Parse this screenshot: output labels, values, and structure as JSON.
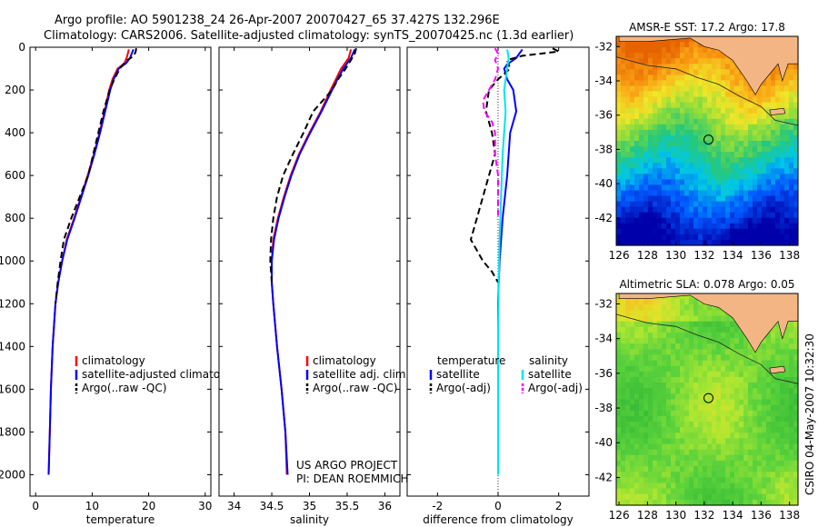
{
  "header": {
    "title_line1": "Argo profile: AO 5901238_24 26-Apr-2007 20070427_65 37.427S 132.296E",
    "title_line2": "Climatology: CARS2006. Satellite-adjusted climatology: synTS_20070425.nc (1.3d earlier)"
  },
  "colors": {
    "climatology": "#ff0000",
    "satellite": "#0000ff",
    "argo": "#000000",
    "diff_temp_sat": "#0000ff",
    "diff_temp_argo": "#000000",
    "diff_sal_sat": "#00e5ee",
    "diff_sal_argo": "#ff00ff",
    "land": "#f4b585"
  },
  "chart_data": [
    {
      "type": "line",
      "id": "temperature",
      "xlabel": "temperature",
      "xlim": [
        -1,
        31
      ],
      "ylim": [
        2100,
        0
      ],
      "xticks": [
        0,
        10,
        20,
        30
      ],
      "yticks": [
        0,
        200,
        400,
        600,
        800,
        1000,
        1200,
        1400,
        1600,
        1800,
        2000
      ],
      "legend": [
        "climatology",
        "satellite-adjusted climatology",
        "Argo(..raw -QC)"
      ],
      "series": [
        {
          "name": "climatology",
          "style": "solid",
          "color_key": "climatology",
          "depth": [
            10,
            30,
            50,
            75,
            100,
            150,
            200,
            300,
            400,
            500,
            600,
            700,
            800,
            900,
            1000,
            1100,
            1200,
            1400,
            1600,
            1800,
            2000
          ],
          "values": [
            16.5,
            16.3,
            16.1,
            15.7,
            14.5,
            13.6,
            13.0,
            12.2,
            11.3,
            10.3,
            9.2,
            8.0,
            6.8,
            5.5,
            4.7,
            4.0,
            3.5,
            3.0,
            2.7,
            2.5,
            2.3
          ]
        },
        {
          "name": "satellite-adjusted climatology",
          "style": "solid",
          "color_key": "satellite",
          "depth": [
            10,
            30,
            50,
            75,
            100,
            150,
            200,
            300,
            400,
            500,
            600,
            700,
            800,
            900,
            1000,
            1100,
            1200,
            1400,
            1600,
            1800,
            2000
          ],
          "values": [
            17.3,
            17.0,
            16.7,
            16.0,
            14.7,
            13.8,
            13.2,
            12.3,
            11.4,
            10.4,
            9.3,
            8.1,
            6.9,
            5.6,
            4.7,
            4.0,
            3.5,
            3.0,
            2.7,
            2.5,
            2.3
          ]
        },
        {
          "name": "Argo(..raw -QC)",
          "style": "dashed",
          "color_key": "argo",
          "depth": [
            5,
            20,
            40,
            60,
            80,
            100,
            150,
            200,
            300,
            400,
            500,
            600,
            700,
            800,
            900,
            1000,
            1100,
            1200
          ],
          "values": [
            17.8,
            17.7,
            17.4,
            16.2,
            15.5,
            14.9,
            13.9,
            13.1,
            12.0,
            11.1,
            10.2,
            9.3,
            7.8,
            6.3,
            5.0,
            4.4,
            3.9,
            3.5
          ]
        }
      ]
    },
    {
      "type": "line",
      "id": "salinity",
      "xlabel": "salinity",
      "xlim": [
        33.8,
        36.2
      ],
      "ylim": [
        2100,
        0
      ],
      "xticks": [
        34,
        34.5,
        35,
        35.5,
        36
      ],
      "legend": [
        "climatology",
        "satellite adj. clim.",
        "Argo(..raw -QC)"
      ],
      "series": [
        {
          "name": "climatology",
          "style": "solid",
          "color_key": "climatology",
          "depth": [
            10,
            50,
            100,
            150,
            200,
            300,
            400,
            500,
            600,
            700,
            800,
            900,
            1000,
            1100,
            1200,
            1400,
            1600,
            1800,
            2000
          ],
          "values": [
            35.55,
            35.52,
            35.42,
            35.35,
            35.28,
            35.15,
            35.0,
            34.86,
            34.75,
            34.66,
            34.58,
            34.52,
            34.5,
            34.5,
            34.52,
            34.57,
            34.63,
            34.68,
            34.7
          ]
        },
        {
          "name": "satellite adj. clim.",
          "style": "solid",
          "color_key": "satellite",
          "depth": [
            10,
            50,
            100,
            150,
            200,
            300,
            400,
            500,
            600,
            700,
            800,
            900,
            1000,
            1100,
            1200,
            1400,
            1600,
            1800,
            2000
          ],
          "values": [
            35.6,
            35.55,
            35.45,
            35.37,
            35.3,
            35.16,
            35.01,
            34.87,
            34.76,
            34.67,
            34.59,
            34.53,
            34.5,
            34.5,
            34.52,
            34.57,
            34.63,
            34.68,
            34.71
          ]
        },
        {
          "name": "Argo(..raw -QC)",
          "style": "dashed",
          "color_key": "argo",
          "depth": [
            5,
            30,
            60,
            100,
            150,
            200,
            300,
            400,
            500,
            600,
            700,
            800,
            900,
            1000,
            1100
          ],
          "values": [
            35.62,
            35.6,
            35.55,
            35.48,
            35.38,
            35.3,
            35.05,
            34.92,
            34.78,
            34.65,
            34.57,
            34.52,
            34.49,
            34.48,
            34.5
          ]
        }
      ],
      "annotation": [
        "US ARGO PROJECT",
        "PI: DEAN ROEMMICH"
      ]
    },
    {
      "type": "line",
      "id": "difference",
      "xlabel": "difference from climatology",
      "xlim": [
        -3,
        3
      ],
      "ylim": [
        2100,
        0
      ],
      "xticks": [
        -2,
        0,
        2
      ],
      "legend_titles": [
        "temperature",
        "salinity"
      ],
      "legend_temp": [
        "satellite",
        "Argo(-adj)"
      ],
      "legend_sal": [
        "satellite",
        "Argo(-adj)"
      ],
      "series": [
        {
          "name": "temperature satellite",
          "style": "solid",
          "color_key": "diff_temp_sat",
          "depth": [
            10,
            30,
            50,
            80,
            100,
            150,
            200,
            300,
            400,
            600,
            800,
            1000,
            1100,
            1200,
            1500,
            2000
          ],
          "values": [
            0.8,
            0.7,
            0.6,
            0.3,
            0.2,
            0.3,
            0.5,
            0.6,
            0.4,
            0.3,
            0.15,
            0.05,
            0.02,
            0.0,
            0.0,
            0.0
          ]
        },
        {
          "name": "temperature Argo(-adj)",
          "style": "dashed",
          "color_key": "diff_temp_argo",
          "depth": [
            5,
            20,
            40,
            60,
            100,
            150,
            200,
            300,
            400,
            500,
            600,
            700,
            800,
            900,
            950,
            1000,
            1050,
            1100
          ],
          "values": [
            1.8,
            2.0,
            0.8,
            0.3,
            0.4,
            0.0,
            -0.3,
            -0.4,
            -0.2,
            -0.1,
            -0.3,
            -0.5,
            -0.7,
            -0.9,
            -0.7,
            -0.5,
            -0.2,
            0.0
          ]
        },
        {
          "name": "salinity satellite",
          "style": "solid",
          "color_key": "diff_sal_sat",
          "depth": [
            10,
            50,
            100,
            200,
            300,
            400,
            500,
            700,
            900,
            1100,
            1300,
            1600,
            2000
          ],
          "values": [
            0.3,
            0.35,
            0.3,
            0.2,
            0.25,
            0.2,
            0.15,
            0.1,
            0.05,
            0.02,
            0.0,
            0.0,
            0.0
          ]
        },
        {
          "name": "salinity Argo(-adj)",
          "style": "dashed",
          "color_key": "diff_sal_argo",
          "depth": [
            5,
            30,
            60,
            100,
            150,
            200,
            250,
            300,
            350,
            400,
            500,
            600,
            700,
            800
          ],
          "values": [
            -0.1,
            0.0,
            -0.1,
            0.0,
            -0.1,
            -0.3,
            -0.5,
            -0.45,
            -0.2,
            -0.1,
            -0.1,
            0.0,
            0.0,
            0.0
          ]
        }
      ]
    },
    {
      "type": "heatmap",
      "id": "sst_map",
      "title": "AMSR-E SST: 17.2 Argo: 17.8",
      "xlim": [
        125.8,
        138.6
      ],
      "ylim": [
        -43.6,
        -31.4
      ],
      "xticks": [
        126,
        128,
        130,
        132,
        134,
        136,
        138
      ],
      "yticks": [
        -32,
        -34,
        -36,
        -38,
        -40,
        -42
      ],
      "float_position": [
        132.296,
        -37.427
      ]
    },
    {
      "type": "heatmap",
      "id": "sla_map",
      "title": "Altimetric SLA: 0.078 Argo: 0.05",
      "xlim": [
        125.8,
        138.6
      ],
      "ylim": [
        -43.6,
        -31.4
      ],
      "xticks": [
        126,
        128,
        130,
        132,
        134,
        136,
        138
      ],
      "yticks": [
        -32,
        -34,
        -36,
        -38,
        -40,
        -42
      ],
      "float_position": [
        132.296,
        -37.427
      ]
    }
  ],
  "footer_side": "CSIRO 04-May-2007 10:32:30"
}
